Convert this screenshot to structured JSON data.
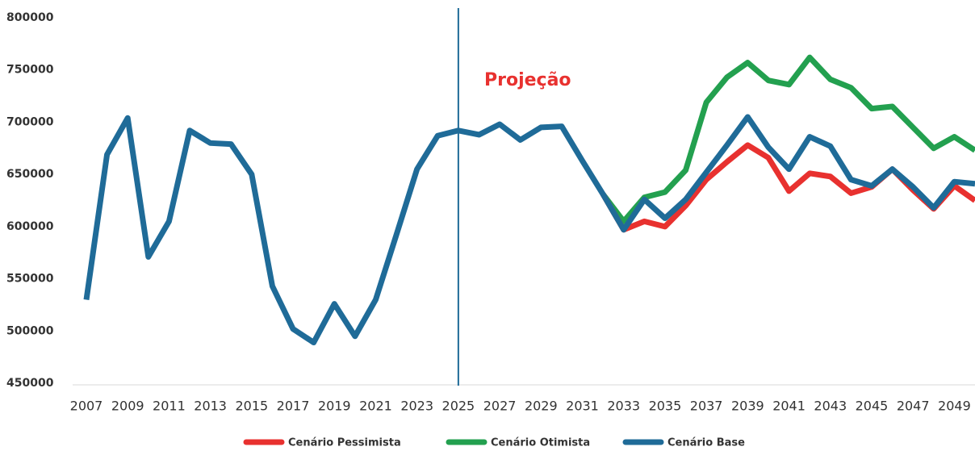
{
  "chart_data": {
    "type": "line",
    "x": [
      2007,
      2008,
      2009,
      2010,
      2011,
      2012,
      2013,
      2014,
      2015,
      2016,
      2017,
      2018,
      2019,
      2020,
      2021,
      2022,
      2023,
      2024,
      2025,
      2026,
      2027,
      2028,
      2029,
      2030,
      2031,
      2032,
      2033,
      2034,
      2035,
      2036,
      2037,
      2038,
      2039,
      2040,
      2041,
      2042,
      2043,
      2044,
      2045,
      2046,
      2047,
      2048,
      2049,
      2050
    ],
    "xlim": [
      2007,
      2050
    ],
    "xticks": [
      2007,
      2009,
      2011,
      2013,
      2015,
      2017,
      2019,
      2021,
      2023,
      2025,
      2027,
      2029,
      2031,
      2033,
      2035,
      2037,
      2039,
      2041,
      2043,
      2045,
      2047,
      2049
    ],
    "ylim": [
      450000,
      800000
    ],
    "yticks": [
      450000,
      500000,
      550000,
      600000,
      650000,
      700000,
      750000,
      800000
    ],
    "vlines": [
      2025
    ],
    "annotation": "Projeção",
    "legend": "bottom",
    "series": [
      {
        "name": "Cenário Otimista",
        "color": "#23a04f",
        "values": [
          null,
          null,
          null,
          null,
          null,
          null,
          null,
          null,
          null,
          null,
          null,
          null,
          null,
          null,
          null,
          null,
          null,
          null,
          null,
          null,
          null,
          null,
          null,
          null,
          null,
          631000,
          605000,
          628000,
          633000,
          654000,
          719000,
          743000,
          757000,
          740000,
          736000,
          762000,
          741000,
          733000,
          713000,
          715000,
          695000,
          675000,
          686000,
          673000
        ]
      },
      {
        "name": "Cenário Pessimista",
        "color": "#e8312f",
        "values": [
          null,
          null,
          null,
          null,
          null,
          null,
          null,
          null,
          null,
          null,
          null,
          null,
          null,
          null,
          null,
          null,
          null,
          null,
          null,
          null,
          null,
          null,
          null,
          null,
          null,
          631000,
          597000,
          605000,
          600000,
          620000,
          645000,
          662000,
          678000,
          666000,
          634000,
          651000,
          648000,
          632000,
          638000,
          655000,
          635000,
          617000,
          639000,
          625000
        ]
      },
      {
        "name": "Cenário Base",
        "color": "#1f6b98",
        "values": [
          530000,
          669000,
          704000,
          571000,
          605000,
          692000,
          680000,
          679000,
          650000,
          543000,
          502000,
          489000,
          526000,
          495000,
          530000,
          592000,
          655000,
          687000,
          692000,
          688000,
          698000,
          683000,
          695000,
          696000,
          663000,
          631000,
          597000,
          626000,
          608000,
          626000,
          652000,
          678000,
          705000,
          676000,
          655000,
          686000,
          677000,
          645000,
          639000,
          655000,
          638000,
          618000,
          643000,
          641000
        ]
      }
    ]
  }
}
